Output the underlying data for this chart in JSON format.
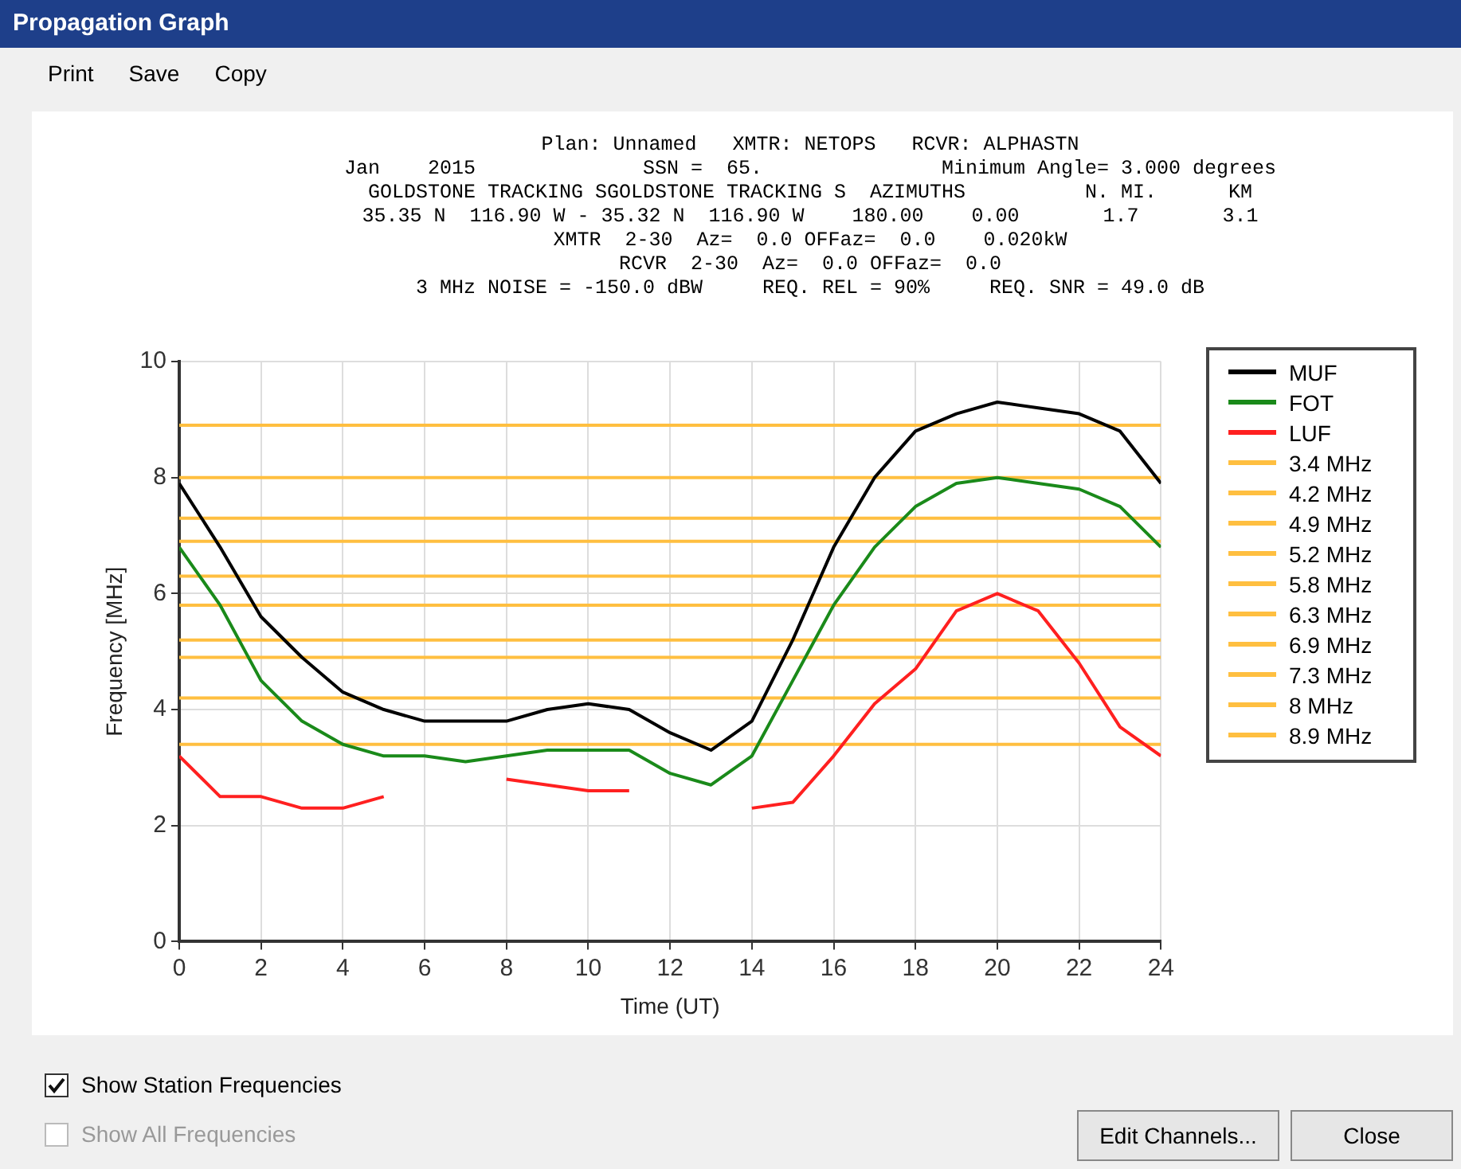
{
  "chart_data": {
    "type": "line",
    "title": "Propagation Graph",
    "xlabel": "Time (UT)",
    "ylabel": "Frequency [MHz]",
    "xlim": [
      0,
      24
    ],
    "xticks": [
      0,
      2,
      4,
      6,
      8,
      10,
      12,
      14,
      16,
      18,
      20,
      22,
      24
    ],
    "ylim": [
      0,
      10
    ],
    "yticks": [
      0,
      2,
      4,
      6,
      8,
      10
    ],
    "grid": true,
    "legend": "right",
    "marker": "none",
    "line_style": "solid",
    "x": [
      0,
      1,
      2,
      3,
      4,
      5,
      6,
      7,
      8,
      9,
      10,
      11,
      12,
      13,
      14,
      15,
      16,
      17,
      18,
      19,
      20,
      21,
      22,
      23,
      24
    ],
    "series": [
      {
        "name": "MUF",
        "color": "#000000",
        "values": [
          7.9,
          6.8,
          5.6,
          4.9,
          4.3,
          4.0,
          3.8,
          3.8,
          3.8,
          4.0,
          4.1,
          4.0,
          3.6,
          3.3,
          3.8,
          5.2,
          6.8,
          8.0,
          8.8,
          9.1,
          9.3,
          9.2,
          9.1,
          8.8,
          7.9
        ]
      },
      {
        "name": "FOT",
        "color": "#1a8a1a",
        "values": [
          6.8,
          5.8,
          4.5,
          3.8,
          3.4,
          3.2,
          3.2,
          3.1,
          3.2,
          3.3,
          3.3,
          3.3,
          2.9,
          2.7,
          3.2,
          4.5,
          5.8,
          6.8,
          7.5,
          7.9,
          8.0,
          7.9,
          7.8,
          7.5,
          6.8
        ]
      },
      {
        "name": "LUF",
        "color": "#ff2020",
        "values": [
          3.2,
          2.5,
          2.5,
          2.3,
          2.3,
          2.5,
          null,
          null,
          2.8,
          2.7,
          2.6,
          2.6,
          null,
          null,
          2.3,
          2.4,
          3.2,
          4.1,
          4.7,
          5.7,
          6.0,
          5.7,
          4.8,
          3.7,
          3.2
        ]
      }
    ],
    "ref_lines": [
      {
        "axis": "y",
        "value": 3.4,
        "label": "3.4 MHz",
        "color": "#ffbf40"
      },
      {
        "axis": "y",
        "value": 4.2,
        "label": "4.2 MHz",
        "color": "#ffbf40"
      },
      {
        "axis": "y",
        "value": 4.9,
        "label": "4.9 MHz",
        "color": "#ffbf40"
      },
      {
        "axis": "y",
        "value": 5.2,
        "label": "5.2 MHz",
        "color": "#ffbf40"
      },
      {
        "axis": "y",
        "value": 5.8,
        "label": "5.8 MHz",
        "color": "#ffbf40"
      },
      {
        "axis": "y",
        "value": 6.3,
        "label": "6.3 MHz",
        "color": "#ffbf40"
      },
      {
        "axis": "y",
        "value": 6.9,
        "label": "6.9 MHz",
        "color": "#ffbf40"
      },
      {
        "axis": "y",
        "value": 7.3,
        "label": "7.3 MHz",
        "color": "#ffbf40"
      },
      {
        "axis": "y",
        "value": 8,
        "label": "8 MHz",
        "color": "#ffbf40"
      },
      {
        "axis": "y",
        "value": 8.9,
        "label": "8.9 MHz",
        "color": "#ffbf40"
      }
    ],
    "annotations": [
      "Plan: Unnamed   XMTR: NETOPS   RCVR: ALPHASTN",
      "Jan    2015              SSN =  65.               Minimum Angle= 3.000 degrees",
      "GOLDSTONE TRACKING SGOLDSTONE TRACKING S  AZIMUTHS          N. MI.      KM",
      "35.35 N  116.90 W - 35.32 N  116.90 W    180.00    0.00       1.7       3.1",
      "XMTR  2-30  Az=  0.0 OFFaz=  0.0    0.020kW",
      "RCVR  2-30  Az=  0.0 OFFaz=  0.0",
      "3 MHz NOISE = -150.0 dBW     REQ. REL = 90%     REQ. SNR = 49.0 dB",
      "Print",
      "Save",
      "Copy",
      "Show Station Frequencies",
      "Show All Frequencies",
      "Edit Channels...",
      "Close"
    ]
  }
}
